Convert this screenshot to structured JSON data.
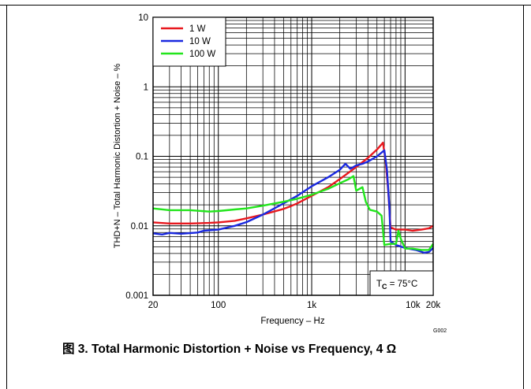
{
  "caption": "图 3. Total Harmonic Distortion + Noise vs Frequency, 4 Ω",
  "graph_code": "G002",
  "chart_data": {
    "type": "line",
    "title": "",
    "xlabel": "Frequency – Hz",
    "ylabel": "THD+N – Total Harmonic Distortion + Noise – %",
    "x_scale": "log",
    "y_scale": "log",
    "xlim": [
      20,
      20000
    ],
    "ylim": [
      0.001,
      10
    ],
    "x_ticks": [
      {
        "value": 20,
        "label": "20"
      },
      {
        "value": 100,
        "label": "100"
      },
      {
        "value": 1000,
        "label": "1k"
      },
      {
        "value": 10000,
        "label": "10k"
      },
      {
        "value": 20000,
        "label": "20k"
      }
    ],
    "y_ticks": [
      {
        "value": 0.001,
        "label": "0.001"
      },
      {
        "value": 0.01,
        "label": "0.01"
      },
      {
        "value": 0.1,
        "label": "0.1"
      },
      {
        "value": 1,
        "label": "1"
      },
      {
        "value": 10,
        "label": "10"
      }
    ],
    "grid": true,
    "legend_position": "top-left",
    "annotation": {
      "text_main": "T",
      "text_sub": "C",
      "text_rest": " = 75°C",
      "position": "bottom-right"
    },
    "series": [
      {
        "name": "1 W",
        "color": "#e8181e",
        "points": [
          [
            20,
            0.0112
          ],
          [
            30,
            0.0108
          ],
          [
            50,
            0.0108
          ],
          [
            80,
            0.011
          ],
          [
            100,
            0.0112
          ],
          [
            150,
            0.0118
          ],
          [
            200,
            0.0128
          ],
          [
            300,
            0.0145
          ],
          [
            500,
            0.0175
          ],
          [
            600,
            0.0192
          ],
          [
            700,
            0.021
          ],
          [
            1000,
            0.027
          ],
          [
            1500,
            0.036
          ],
          [
            2000,
            0.047
          ],
          [
            3000,
            0.07
          ],
          [
            4000,
            0.095
          ],
          [
            5000,
            0.125
          ],
          [
            5800,
            0.157
          ],
          [
            6200,
            0.085
          ],
          [
            6600,
            0.032
          ],
          [
            7000,
            0.0095
          ],
          [
            8000,
            0.0088
          ],
          [
            10000,
            0.0088
          ],
          [
            12000,
            0.0085
          ],
          [
            15000,
            0.0088
          ],
          [
            18000,
            0.0092
          ],
          [
            20000,
            0.01
          ]
        ]
      },
      {
        "name": "10 W",
        "color": "#1a29e0",
        "points": [
          [
            20,
            0.0078
          ],
          [
            25,
            0.0075
          ],
          [
            30,
            0.0079
          ],
          [
            40,
            0.0077
          ],
          [
            60,
            0.008
          ],
          [
            70,
            0.0085
          ],
          [
            100,
            0.0088
          ],
          [
            150,
            0.01
          ],
          [
            200,
            0.0113
          ],
          [
            300,
            0.0145
          ],
          [
            500,
            0.021
          ],
          [
            700,
            0.027
          ],
          [
            1000,
            0.037
          ],
          [
            1500,
            0.05
          ],
          [
            2000,
            0.064
          ],
          [
            2300,
            0.078
          ],
          [
            2600,
            0.066
          ],
          [
            3000,
            0.074
          ],
          [
            3500,
            0.078
          ],
          [
            4000,
            0.084
          ],
          [
            5000,
            0.1
          ],
          [
            6000,
            0.122
          ],
          [
            6400,
            0.065
          ],
          [
            6800,
            0.018
          ],
          [
            7000,
            0.006
          ],
          [
            8000,
            0.0053
          ],
          [
            10000,
            0.0048
          ],
          [
            13000,
            0.0045
          ],
          [
            16000,
            0.0041
          ],
          [
            18000,
            0.0042
          ],
          [
            20000,
            0.0048
          ]
        ]
      },
      {
        "name": "100 W",
        "color": "#22e51c",
        "points": [
          [
            20,
            0.0178
          ],
          [
            30,
            0.0168
          ],
          [
            50,
            0.0168
          ],
          [
            80,
            0.016
          ],
          [
            100,
            0.0163
          ],
          [
            150,
            0.0172
          ],
          [
            200,
            0.0178
          ],
          [
            300,
            0.0195
          ],
          [
            500,
            0.0222
          ],
          [
            700,
            0.0245
          ],
          [
            1000,
            0.028
          ],
          [
            1500,
            0.034
          ],
          [
            2000,
            0.041
          ],
          [
            2500,
            0.047
          ],
          [
            2800,
            0.052
          ],
          [
            3000,
            0.032
          ],
          [
            3500,
            0.036
          ],
          [
            3800,
            0.022
          ],
          [
            4200,
            0.017
          ],
          [
            5000,
            0.016
          ],
          [
            5600,
            0.014
          ],
          [
            6000,
            0.0053
          ],
          [
            7000,
            0.0055
          ],
          [
            8000,
            0.0055
          ],
          [
            8500,
            0.0085
          ],
          [
            9000,
            0.0065
          ],
          [
            10000,
            0.0047
          ],
          [
            12000,
            0.0047
          ],
          [
            15000,
            0.0045
          ],
          [
            18000,
            0.0045
          ],
          [
            20000,
            0.0055
          ]
        ]
      }
    ]
  }
}
